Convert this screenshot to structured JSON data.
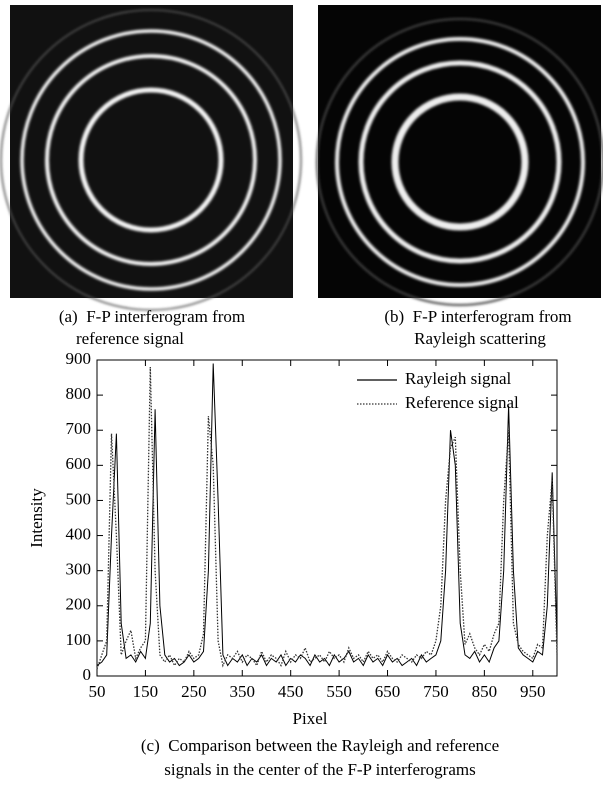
{
  "figures": [
    {
      "caption": [
        "(a)  F-P interferogram from",
        "reference signal"
      ]
    },
    {
      "caption": [
        "(b)  F-P interferogram from",
        "Rayleigh scattering"
      ]
    }
  ],
  "chart_data": {
    "type": "line",
    "x_label": "Pixel",
    "y_label": "Intensity",
    "caption": [
      "(c)  Comparison between the Rayleigh and reference",
      "signals in the center of the F-P interferograms"
    ],
    "xlim": [
      50,
      1000
    ],
    "ylim": [
      0,
      900
    ],
    "xticks": [
      50,
      150,
      250,
      350,
      450,
      550,
      650,
      750,
      850,
      950
    ],
    "yticks": [
      0,
      100,
      200,
      300,
      400,
      500,
      600,
      700,
      800,
      900
    ],
    "legend": "upper right",
    "x": [
      50,
      60,
      70,
      80,
      90,
      100,
      110,
      120,
      130,
      140,
      150,
      160,
      170,
      180,
      190,
      200,
      210,
      220,
      230,
      240,
      250,
      260,
      270,
      280,
      290,
      300,
      310,
      320,
      330,
      340,
      350,
      360,
      370,
      380,
      390,
      400,
      410,
      420,
      430,
      440,
      450,
      460,
      470,
      480,
      490,
      500,
      510,
      520,
      530,
      540,
      550,
      560,
      570,
      580,
      590,
      600,
      610,
      620,
      630,
      640,
      650,
      660,
      670,
      680,
      690,
      700,
      710,
      720,
      730,
      740,
      750,
      760,
      770,
      780,
      790,
      800,
      810,
      820,
      830,
      840,
      850,
      860,
      870,
      880,
      890,
      900,
      910,
      920,
      930,
      940,
      950,
      960,
      970,
      980,
      990,
      1000
    ],
    "series": [
      {
        "name": "Rayleigh signal",
        "color": "#000000",
        "line_style": "solid",
        "values": [
          30,
          40,
          60,
          400,
          690,
          150,
          50,
          60,
          40,
          70,
          50,
          150,
          760,
          200,
          60,
          40,
          50,
          30,
          40,
          60,
          40,
          50,
          70,
          300,
          890,
          500,
          60,
          30,
          50,
          40,
          60,
          30,
          50,
          40,
          60,
          30,
          50,
          40,
          60,
          30,
          50,
          40,
          60,
          50,
          30,
          60,
          40,
          50,
          30,
          60,
          40,
          50,
          70,
          40,
          50,
          30,
          60,
          40,
          50,
          30,
          60,
          40,
          50,
          30,
          40,
          50,
          30,
          60,
          40,
          50,
          60,
          100,
          300,
          700,
          600,
          150,
          60,
          50,
          70,
          40,
          60,
          40,
          80,
          100,
          300,
          770,
          300,
          80,
          60,
          50,
          40,
          70,
          60,
          200,
          580,
          100
        ]
      },
      {
        "name": "Reference signal",
        "color": "#333333",
        "line_style": "dotted",
        "values": [
          20,
          60,
          100,
          690,
          400,
          60,
          100,
          130,
          50,
          80,
          100,
          880,
          300,
          60,
          40,
          60,
          30,
          50,
          40,
          70,
          50,
          60,
          120,
          740,
          600,
          100,
          30,
          60,
          50,
          70,
          40,
          60,
          50,
          30,
          70,
          40,
          60,
          50,
          30,
          70,
          40,
          60,
          50,
          80,
          40,
          50,
          60,
          40,
          70,
          50,
          60,
          40,
          80,
          50,
          60,
          40,
          70,
          50,
          60,
          40,
          70,
          50,
          40,
          60,
          50,
          40,
          60,
          50,
          70,
          60,
          100,
          200,
          500,
          650,
          680,
          300,
          90,
          120,
          80,
          60,
          90,
          70,
          120,
          150,
          500,
          700,
          150,
          90,
          70,
          60,
          50,
          90,
          80,
          400,
          560,
          60
        ]
      }
    ]
  }
}
